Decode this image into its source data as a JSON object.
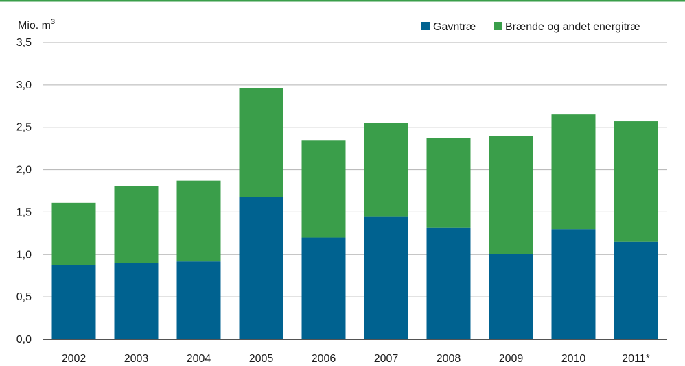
{
  "chart_data": {
    "type": "bar",
    "stacked": true,
    "categories": [
      "2002",
      "2003",
      "2004",
      "2005",
      "2006",
      "2007",
      "2008",
      "2009",
      "2010",
      "2011*"
    ],
    "series": [
      {
        "name": "Gavntræ",
        "color": "#006290",
        "values": [
          0.88,
          0.9,
          0.92,
          1.68,
          1.2,
          1.45,
          1.32,
          1.01,
          1.3,
          1.15
        ]
      },
      {
        "name": "Brænde og andet energitræ",
        "color": "#3a9e4a",
        "values": [
          0.73,
          0.91,
          0.95,
          1.28,
          1.15,
          1.1,
          1.05,
          1.39,
          1.35,
          1.42
        ]
      }
    ],
    "unit_label": "Mio. m",
    "unit_superscript": "3",
    "ylim": [
      0,
      3.5
    ],
    "yticks": [
      0,
      0.5,
      1.0,
      1.5,
      2.0,
      2.5,
      3.0,
      3.5
    ],
    "ytick_labels": [
      "0,0",
      "0,5",
      "1,0",
      "1,5",
      "2,0",
      "2,5",
      "3,0",
      "3,5"
    ],
    "grid": true,
    "legend_position": "top-right",
    "top_rule_color": "#3a9e4a"
  }
}
